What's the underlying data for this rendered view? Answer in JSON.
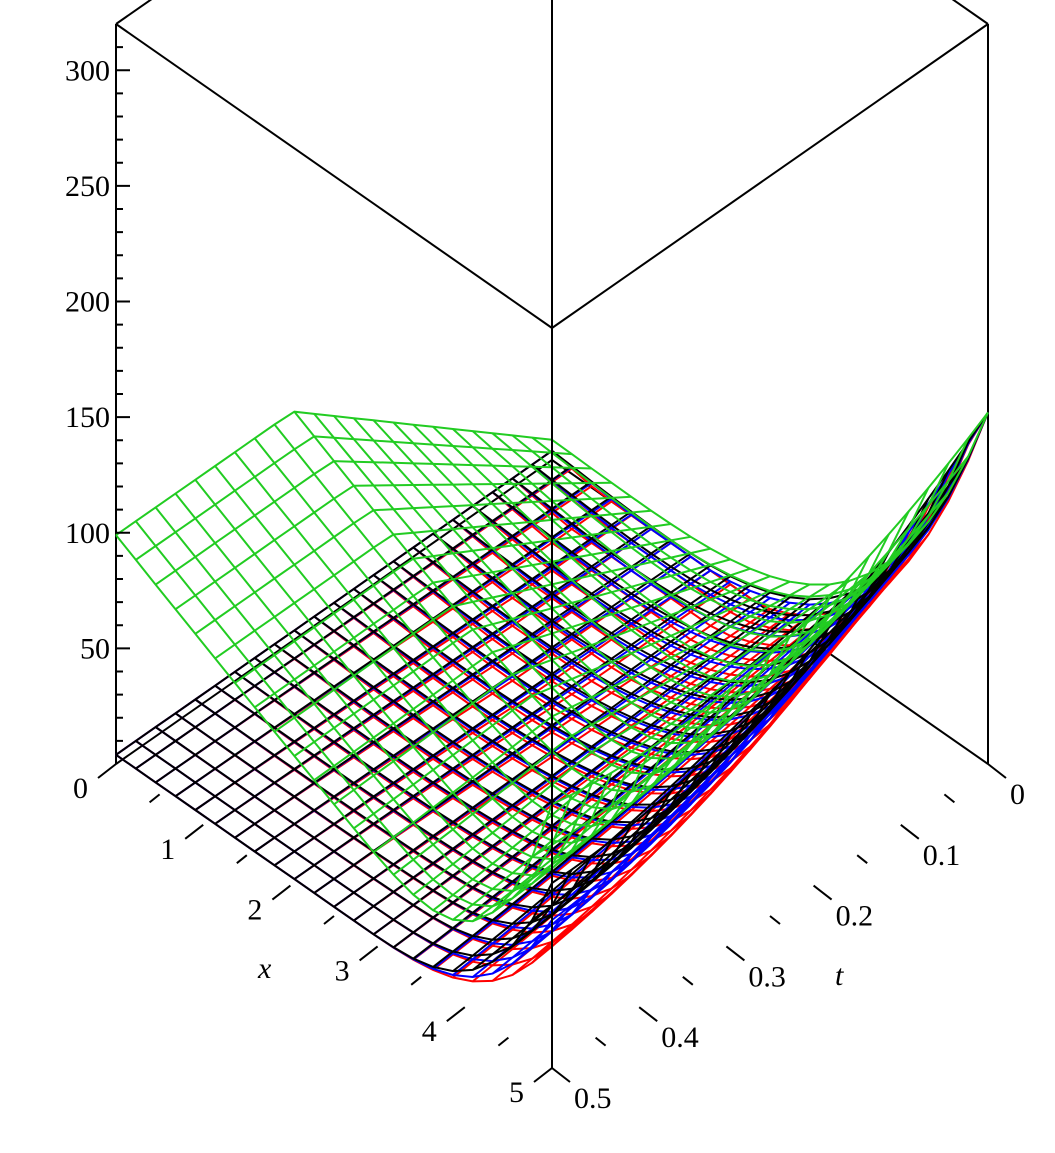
{
  "chart_data": {
    "type": "surface3d",
    "title": "",
    "axes": {
      "x": {
        "label": "x",
        "range": [
          0,
          5
        ],
        "ticks": [
          0,
          1,
          2,
          3,
          4,
          5
        ]
      },
      "t": {
        "label": "t",
        "range": [
          0,
          0.5
        ],
        "ticks": [
          0,
          0.1,
          0.2,
          0.3,
          0.4,
          0.5
        ]
      },
      "z": {
        "label": "",
        "range": [
          0,
          320
        ],
        "ticks": [
          50,
          100,
          150,
          200,
          250,
          300
        ]
      }
    },
    "tick_labels": {
      "x": [
        "0",
        "1",
        "2",
        "3",
        "4",
        "5"
      ],
      "t": [
        "0",
        "0.1",
        "0.2",
        "0.3",
        "0.4",
        "0.5"
      ],
      "z": [
        "50",
        "100",
        "150",
        "200",
        "250",
        "300"
      ]
    },
    "box": true,
    "series": [
      {
        "color": "#ff0000",
        "dip_min": -10,
        "edge_value_at_t0": 148,
        "edge_value_at_t05": 68,
        "wall_height_at_t05": 50
      },
      {
        "color": "#0000ff",
        "dip_min": -6,
        "edge_value_at_t0": 148,
        "edge_value_at_t05": 68,
        "wall_height_at_t05": 60
      },
      {
        "color": "#000000",
        "dip_min": -4,
        "edge_value_at_t0": 148,
        "edge_value_at_t05": 68,
        "wall_height_at_t05": 76
      },
      {
        "color": "#22cc22",
        "dip_min": 0,
        "edge_value_at_t0": 148,
        "edge_value_at_t05": 68,
        "plateau_at_x0": 95,
        "wall_height_at_t05": 110
      }
    ]
  }
}
